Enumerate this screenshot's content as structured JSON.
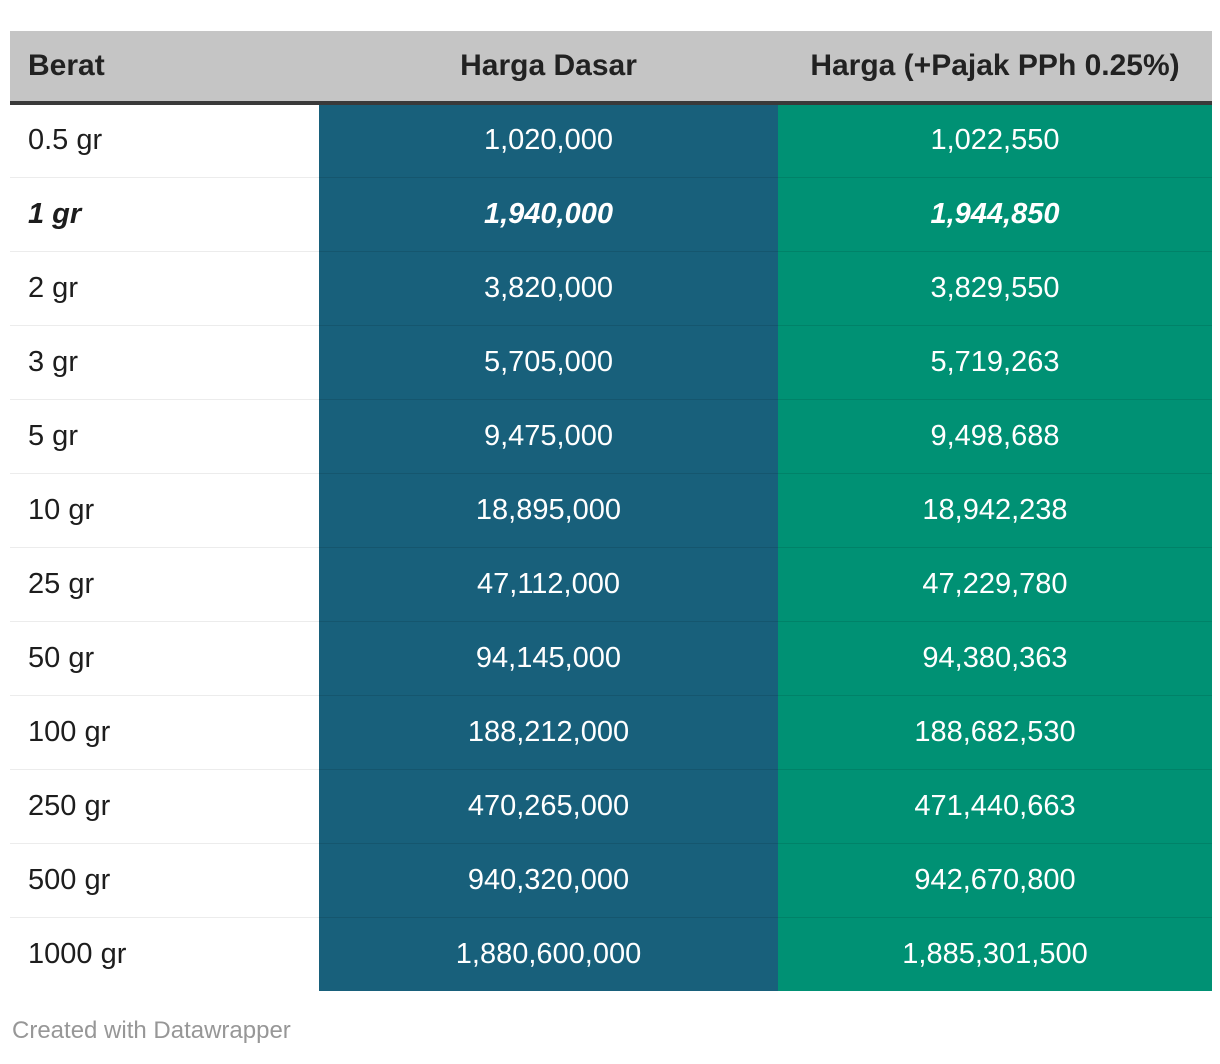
{
  "chart_data": {
    "type": "table",
    "columns": [
      "Berat",
      "Harga Dasar",
      "Harga (+Pajak PPh 0.25%)"
    ],
    "rows": [
      {
        "berat": "0.5 gr",
        "harga_dasar": "1,020,000",
        "harga_pajak": "1,022,550",
        "highlight": false
      },
      {
        "berat": "1 gr",
        "harga_dasar": "1,940,000",
        "harga_pajak": "1,944,850",
        "highlight": true
      },
      {
        "berat": "2 gr",
        "harga_dasar": "3,820,000",
        "harga_pajak": "3,829,550",
        "highlight": false
      },
      {
        "berat": "3 gr",
        "harga_dasar": "5,705,000",
        "harga_pajak": "5,719,263",
        "highlight": false
      },
      {
        "berat": "5 gr",
        "harga_dasar": "9,475,000",
        "harga_pajak": "9,498,688",
        "highlight": false
      },
      {
        "berat": "10 gr",
        "harga_dasar": "18,895,000",
        "harga_pajak": "18,942,238",
        "highlight": false
      },
      {
        "berat": "25 gr",
        "harga_dasar": "47,112,000",
        "harga_pajak": "47,229,780",
        "highlight": false
      },
      {
        "berat": "50 gr",
        "harga_dasar": "94,145,000",
        "harga_pajak": "94,380,363",
        "highlight": false
      },
      {
        "berat": "100 gr",
        "harga_dasar": "188,212,000",
        "harga_pajak": "188,682,530",
        "highlight": false
      },
      {
        "berat": "250 gr",
        "harga_dasar": "470,265,000",
        "harga_pajak": "471,440,663",
        "highlight": false
      },
      {
        "berat": "500 gr",
        "harga_dasar": "940,320,000",
        "harga_pajak": "942,670,800",
        "highlight": false
      },
      {
        "berat": "1000 gr",
        "harga_dasar": "1,880,600,000",
        "harga_pajak": "1,885,301,500",
        "highlight": false
      }
    ],
    "values": [
      [
        0.5,
        1020000,
        1022550
      ],
      [
        1,
        1940000,
        1944850
      ],
      [
        2,
        3820000,
        3829550
      ],
      [
        3,
        5705000,
        5719263
      ],
      [
        5,
        9475000,
        9498688
      ],
      [
        10,
        18895000,
        18942238
      ],
      [
        25,
        47112000,
        47229780
      ],
      [
        50,
        94145000,
        94380363
      ],
      [
        100,
        188212000,
        188682530
      ],
      [
        250,
        470265000,
        471440663
      ],
      [
        500,
        940320000,
        942670800
      ],
      [
        1000,
        1880600000,
        1885301500
      ]
    ],
    "layout": {
      "highlighted_row": "1 gr",
      "column_alignment": [
        "left",
        "center",
        "center"
      ],
      "grid": "horizontal-separators"
    }
  },
  "colors": {
    "header_bg": "#c5c5c5",
    "header_text": "#222222",
    "header_border": "#3a3a3a",
    "harga_dasar_bg": "#18607b",
    "harga_pajak_bg": "#009174",
    "value_text": "#ffffff",
    "row_label_text": "#1d1d1d",
    "row_separator": "#ececec",
    "footer_text": "#979797"
  },
  "footer": {
    "text": "Created with Datawrapper"
  }
}
